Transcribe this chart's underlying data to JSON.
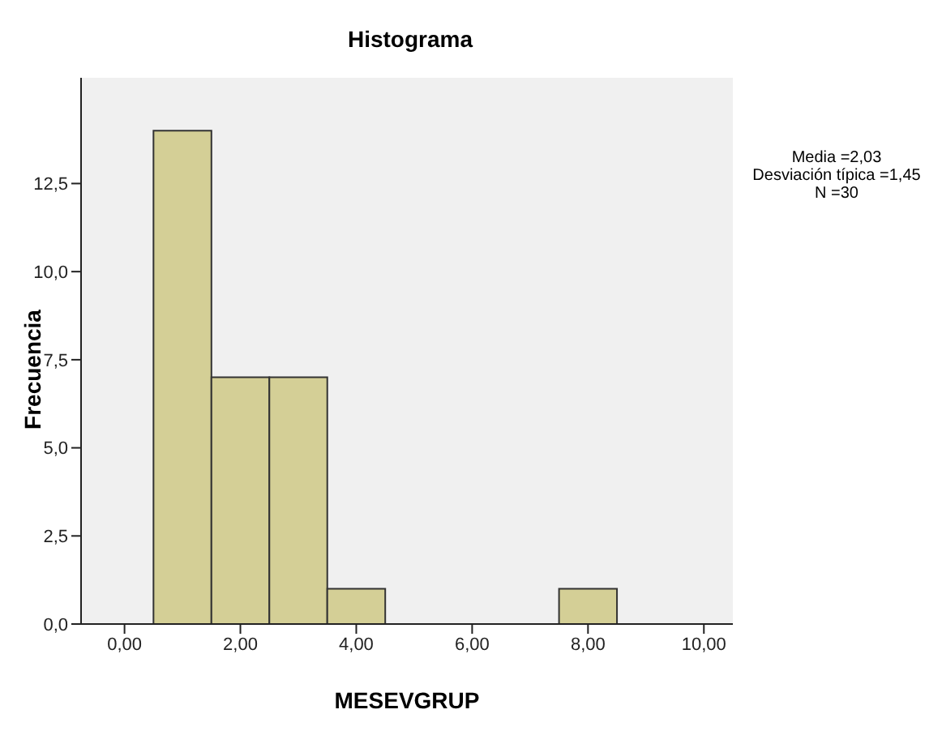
{
  "chart_data": {
    "type": "histogram",
    "title": "Histograma",
    "xlabel": "MESEVGRUP",
    "ylabel": "Frecuencia",
    "bins": [
      0.5,
      1.5,
      2.5,
      3.5,
      4.5,
      5.5,
      6.5,
      7.5,
      8.5
    ],
    "values": [
      14,
      7,
      7,
      1,
      0,
      0,
      0,
      1
    ],
    "color": "#d4cf96",
    "xlim": [
      -0.75,
      10.5
    ],
    "xticks": [
      {
        "value": 0,
        "label": "0,00"
      },
      {
        "value": 2,
        "label": "2,00"
      },
      {
        "value": 4,
        "label": "4,00"
      },
      {
        "value": 6,
        "label": "6,00"
      },
      {
        "value": 8,
        "label": "8,00"
      },
      {
        "value": 10,
        "label": "10,00"
      }
    ],
    "ylim": [
      0,
      15.5
    ],
    "yticks": [
      {
        "value": 0,
        "label": "0,0"
      },
      {
        "value": 2.5,
        "label": "2,5"
      },
      {
        "value": 5,
        "label": "5,0"
      },
      {
        "value": 7.5,
        "label": "7,5"
      },
      {
        "value": 10,
        "label": "10,0"
      },
      {
        "value": 12.5,
        "label": "12,5"
      }
    ],
    "grid": false,
    "annotations": [
      "Media =2,03",
      "Desviación típica =1,45",
      "N =30"
    ]
  }
}
